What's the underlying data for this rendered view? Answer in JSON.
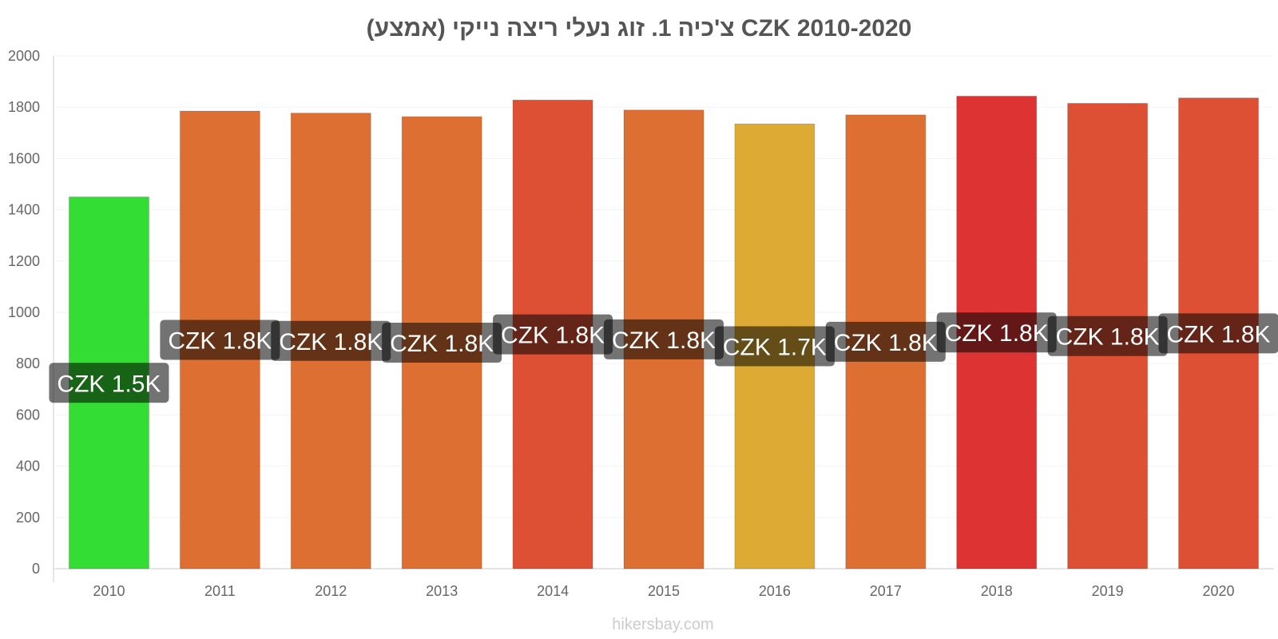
{
  "chart_data": {
    "type": "bar",
    "title": "צ'כיה 1. זוג נעלי ריצה נייקי (אמצע) CZK 2010-2020",
    "categories": [
      "2010",
      "2011",
      "2012",
      "2013",
      "2014",
      "2015",
      "2016",
      "2017",
      "2018",
      "2019",
      "2020"
    ],
    "values": [
      1450,
      1785,
      1777,
      1763,
      1828,
      1789,
      1735,
      1770,
      1843,
      1815,
      1836
    ],
    "data_labels": [
      "CZK 1.5K",
      "CZK 1.8K",
      "CZK 1.8K",
      "CZK 1.8K",
      "CZK 1.8K",
      "CZK 1.8K",
      "CZK 1.7K",
      "CZK 1.8K",
      "CZK 1.8K",
      "CZK 1.8K",
      "CZK 1.8K"
    ],
    "colors": [
      "#33dd33",
      "#dd6f33",
      "#dd6f33",
      "#dd6f33",
      "#dd5033",
      "#dd6f33",
      "#ddaa33",
      "#dd6f33",
      "#dd3333",
      "#dd5033",
      "#dd5033"
    ],
    "y_ticks": [
      0,
      200,
      400,
      600,
      800,
      1000,
      1200,
      1400,
      1600,
      1800,
      2000
    ],
    "ylim": [
      0,
      2000
    ],
    "grid": true,
    "xlabel": "",
    "ylabel": ""
  },
  "footer": {
    "source": "hikersbay.com"
  }
}
